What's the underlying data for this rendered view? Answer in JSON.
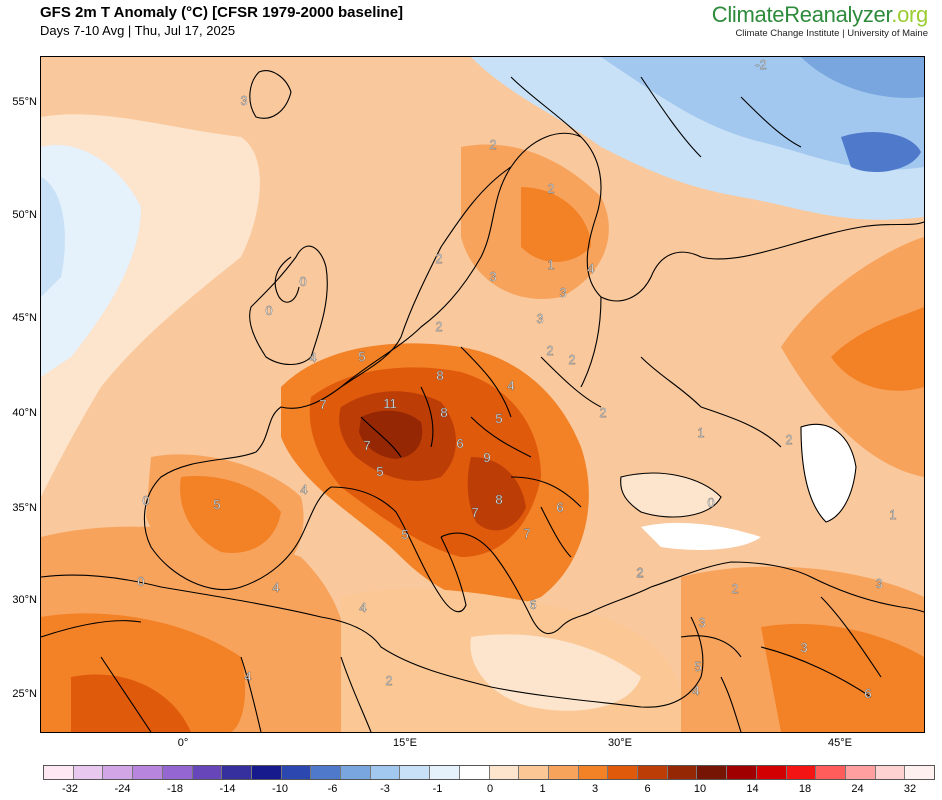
{
  "header": {
    "title": "GFS 2m T Anomaly (°C) [CFSR 1979-2000 baseline]",
    "subtitle": "Days 7-10 Avg | Thu, Jul 17, 2025",
    "brand_main": "ClimateReanalyzer",
    "brand_tld": ".org",
    "brand_sub": "Climate Change Institute | University of Maine"
  },
  "axes": {
    "lat_labels": [
      "55°N",
      "50°N",
      "45°N",
      "40°N",
      "35°N",
      "30°N",
      "25°N"
    ],
    "lon_labels": [
      "0°",
      "15°E",
      "30°E",
      "45°E"
    ]
  },
  "colorbar": {
    "labels": [
      "-32",
      "-24",
      "-18",
      "-14",
      "-10",
      "-6",
      "-3",
      "-1",
      "0",
      "1",
      "3",
      "6",
      "10",
      "14",
      "18",
      "24",
      "32"
    ],
    "colors": [
      "#fde8f4",
      "#e8c8ef",
      "#d2a6e6",
      "#b885de",
      "#9466d2",
      "#6646b8",
      "#35309e",
      "#161a8c",
      "#2c48b0",
      "#4f79cb",
      "#79a6df",
      "#a2c8ef",
      "#c8e1f7",
      "#e5f1fb",
      "#ffffff",
      "#fde4cc",
      "#fbc895",
      "#f8a35c",
      "#f38126",
      "#e05a0c",
      "#bd3d06",
      "#952704",
      "#761504",
      "#a00000",
      "#d20000",
      "#f41414",
      "#ff5c5c",
      "#ff9f9f",
      "#ffd2d2",
      "#fff0f0"
    ]
  },
  "map_labels": [
    "3",
    "-2",
    "2",
    "2",
    "1",
    "4",
    "2",
    "3",
    "3",
    "0",
    "0",
    "2",
    "2",
    "3",
    "2",
    "4",
    "5",
    "8",
    "4",
    "7",
    "11",
    "8",
    "5",
    "2",
    "7",
    "6",
    "9",
    "1",
    "2",
    "5",
    "8",
    "6",
    "4",
    "5",
    "0",
    "7",
    "7",
    "5",
    "0",
    "0",
    "6",
    "4",
    "4",
    "2",
    "2",
    "2",
    "3",
    "3",
    "3",
    "5",
    "4",
    "4",
    "2",
    "1",
    "6"
  ]
}
